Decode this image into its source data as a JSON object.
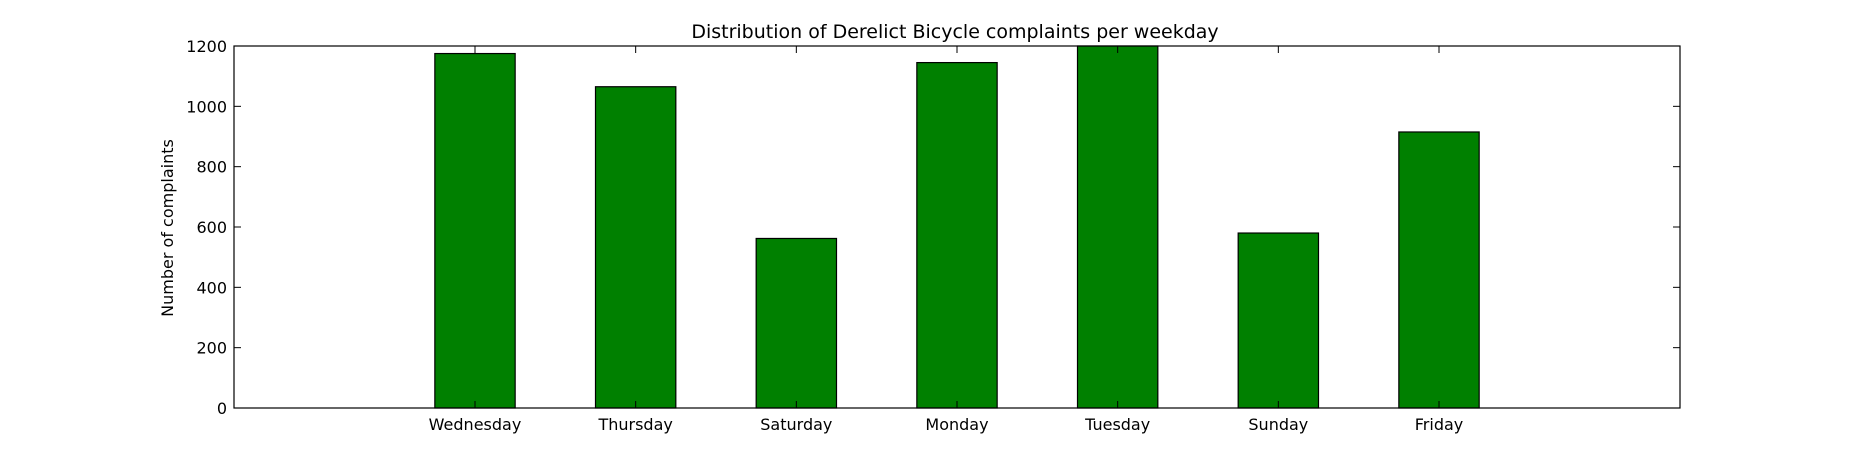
{
  "chart_data": {
    "type": "bar",
    "title": "Distribution of  Derelict Bicycle complaints per weekday",
    "xlabel": "",
    "ylabel": "Number of complaints",
    "categories": [
      "Wednesday",
      "Thursday",
      "Saturday",
      "Monday",
      "Tuesday",
      "Sunday",
      "Friday"
    ],
    "values": [
      1175,
      1065,
      562,
      1145,
      1200,
      580,
      915
    ],
    "ylim": [
      0,
      1200
    ],
    "yticks": [
      0,
      200,
      400,
      600,
      800,
      1000,
      1200
    ],
    "grid": false,
    "legend": "none",
    "colors": {
      "bar_fill": "#008000",
      "bar_stroke": "#000000",
      "axes": "#000000"
    }
  }
}
